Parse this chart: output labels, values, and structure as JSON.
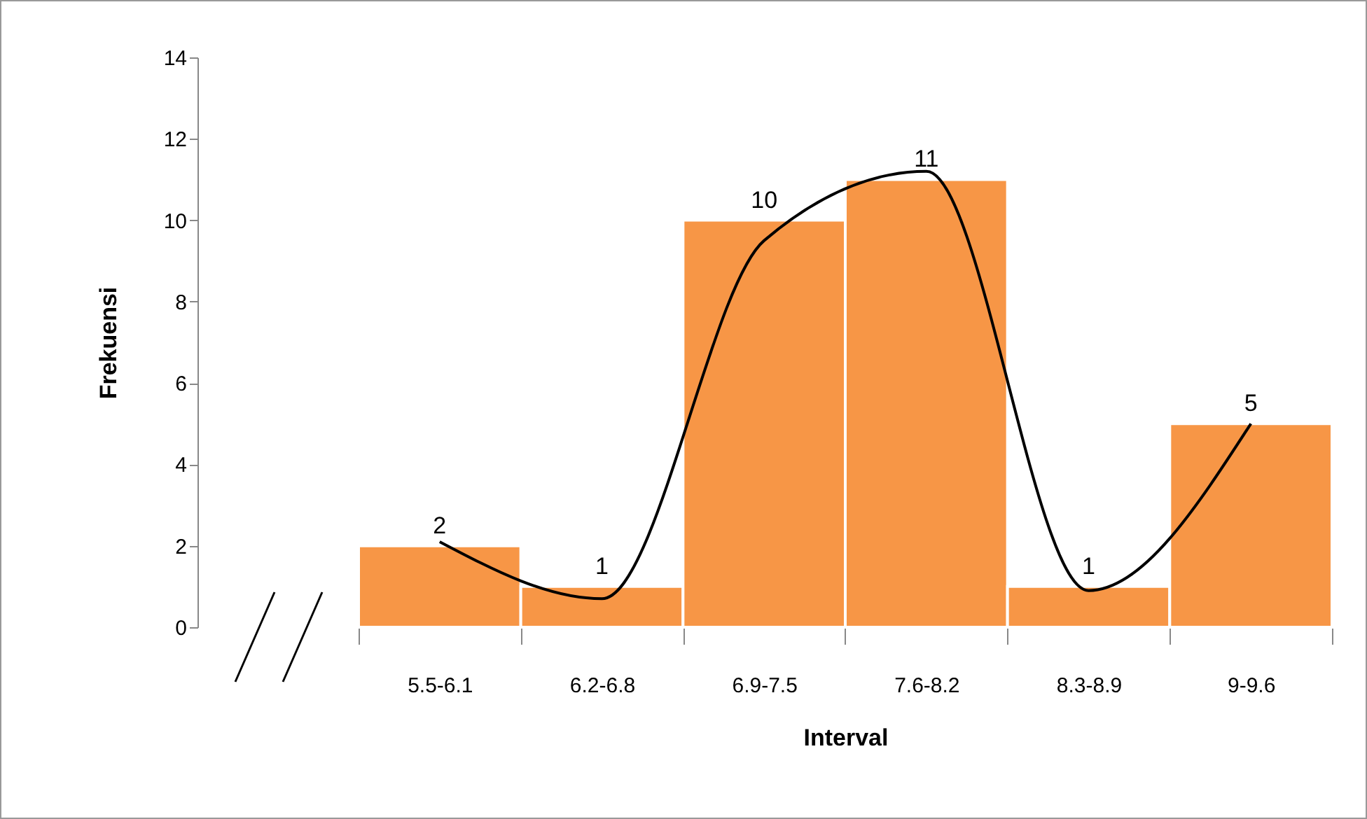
{
  "chart_data": {
    "type": "bar",
    "xlabel": "Interval",
    "ylabel": "Frekuensi",
    "categories": [
      "5.5-6.1",
      "6.2-6.8",
      "6.9-7.5",
      "7.6-8.2",
      "8.3-8.9",
      "9-9.6"
    ],
    "series": [
      {
        "color": "#f79646",
        "values": [
          2,
          1,
          10,
          11,
          1,
          5
        ],
        "value_labels": [
          "2",
          "1",
          "10",
          "11",
          "1",
          "5"
        ]
      },
      {
        "type": "line",
        "color": "#000000",
        "values": [
          2.1,
          0.7,
          9.5,
          11.2,
          0.9,
          5
        ]
      }
    ],
    "ylim": [
      0,
      14
    ],
    "yticks": [
      0,
      2,
      4,
      6,
      8,
      10,
      12,
      14
    ],
    "grid": false,
    "marker": "none",
    "line_style": "solid"
  }
}
